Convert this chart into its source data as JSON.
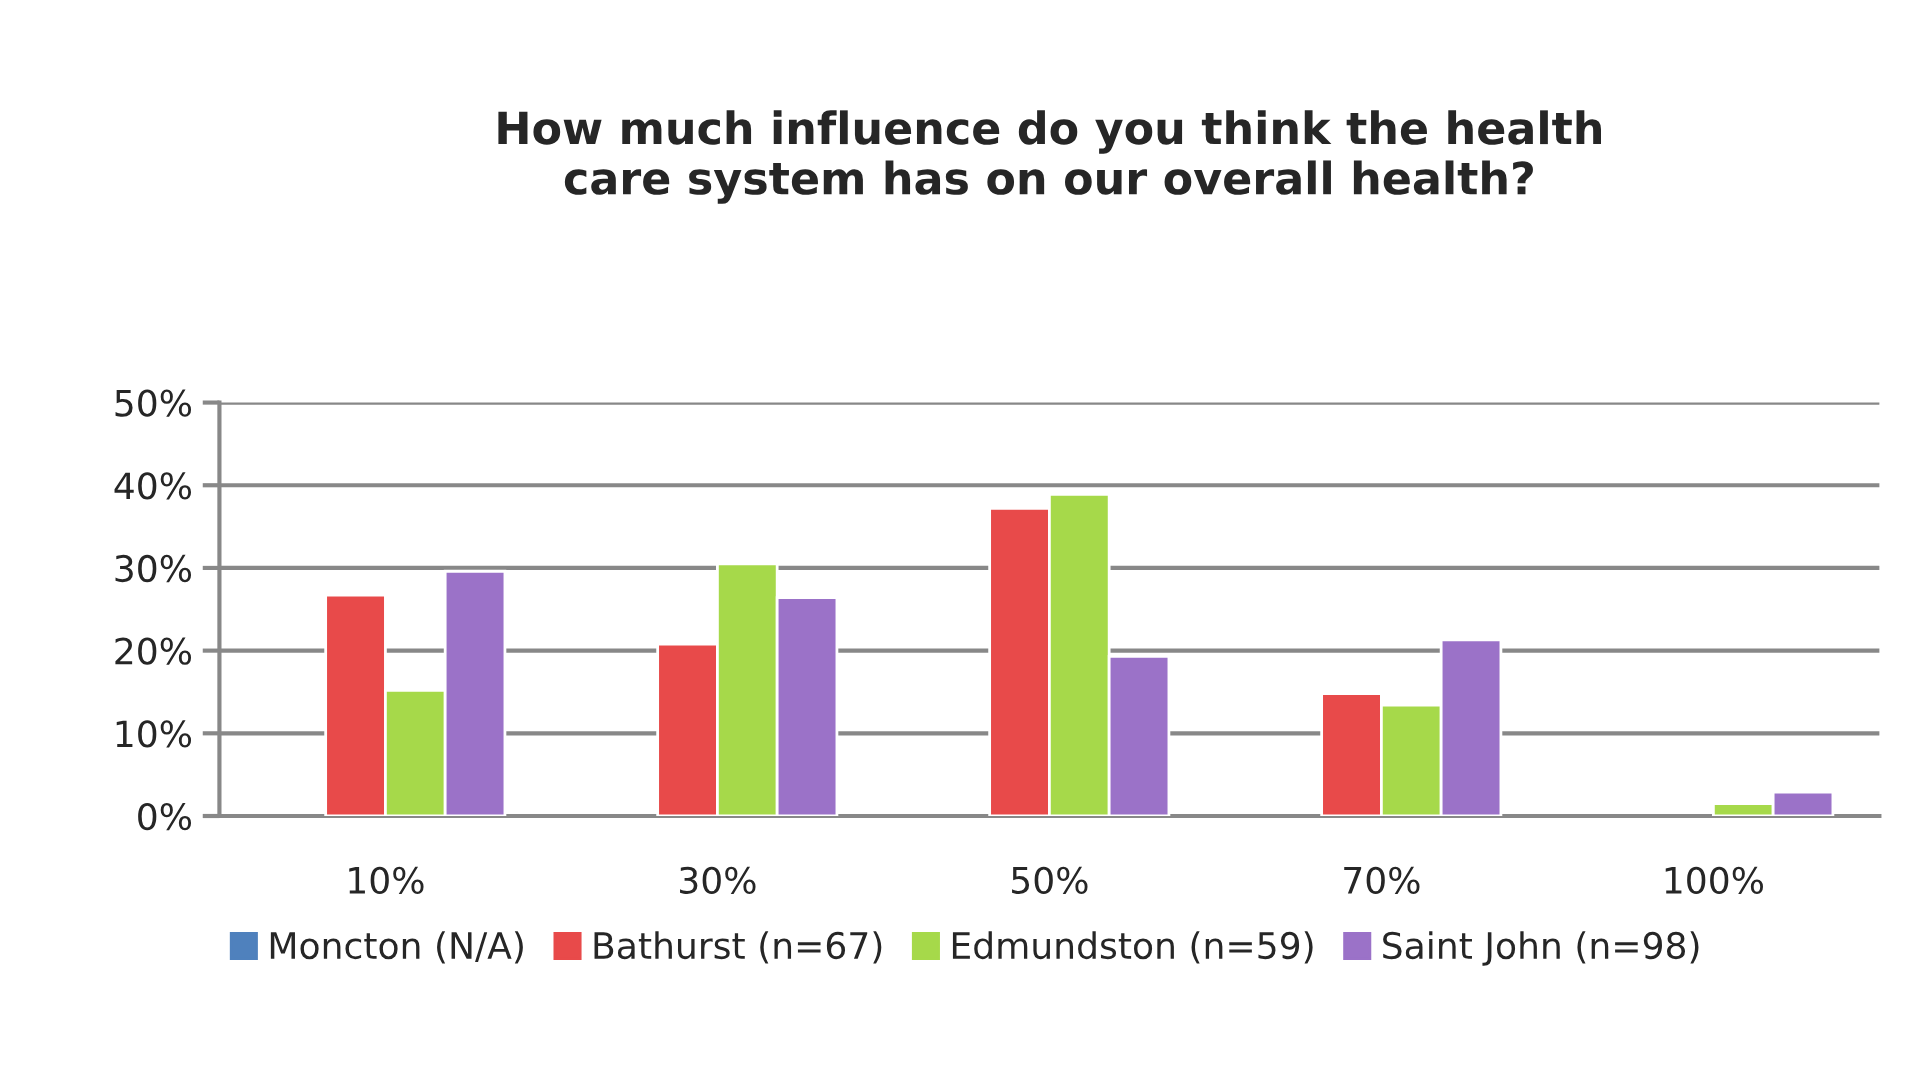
{
  "chart_data": {
    "type": "bar",
    "title": "How much influence do you think the health\ncare system has on our overall health?",
    "categories": [
      "10%",
      "30%",
      "50%",
      "70%",
      "100%"
    ],
    "series": [
      {
        "name": "Moncton (N/A)",
        "color": "#4f81bd",
        "values": [
          null,
          null,
          null,
          null,
          null
        ]
      },
      {
        "name": "Bathurst (n=67)",
        "color": "#e84a4a",
        "values": [
          26.7,
          20.8,
          37.2,
          14.8,
          null
        ]
      },
      {
        "name": "Edmundston (n=59)",
        "color": "#a6d94a",
        "values": [
          15.2,
          30.5,
          38.9,
          13.4,
          1.5
        ]
      },
      {
        "name": "Saint John (n=98)",
        "color": "#9b72c8",
        "values": [
          29.6,
          26.4,
          19.3,
          21.3,
          2.9
        ]
      }
    ],
    "ylim": [
      0,
      50
    ],
    "yticks": [
      {
        "value": 0,
        "label": "0%"
      },
      {
        "value": 10,
        "label": "10%"
      },
      {
        "value": 20,
        "label": "20%"
      },
      {
        "value": 30,
        "label": "30%"
      },
      {
        "value": 40,
        "label": "40%"
      },
      {
        "value": 50,
        "label": "50%"
      }
    ],
    "grid": "y",
    "legend": "bottom"
  }
}
